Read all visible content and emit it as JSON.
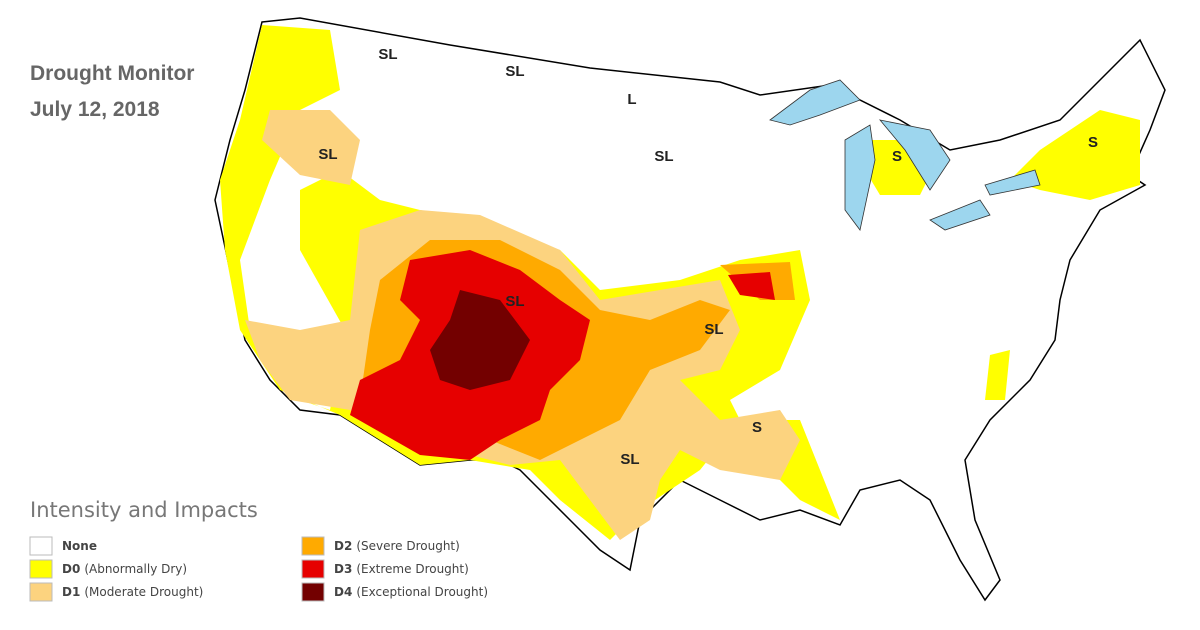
{
  "header": {
    "title": "Drought Monitor",
    "date": "July 12, 2018"
  },
  "map": {
    "labels": [
      "SL",
      "SL",
      "L",
      "SL",
      "SL",
      "S",
      "S",
      "SL",
      "SL",
      "S",
      "SL"
    ]
  },
  "legend": {
    "title": "Intensity and Impacts",
    "items": [
      {
        "code": "None",
        "color": "#ffffff"
      },
      {
        "code": "D0",
        "description": "(Abnormally Dry)",
        "color": "#ffff00"
      },
      {
        "code": "D1",
        "description": "(Moderate Drought)",
        "color": "#fcd37f"
      },
      {
        "code": "D2",
        "description": "(Severe Drought)",
        "color": "#ffaa00"
      },
      {
        "code": "D3",
        "description": "(Extreme Drought)",
        "color": "#e60000"
      },
      {
        "code": "D4",
        "description": "(Exceptional Drought)",
        "color": "#730000"
      }
    ]
  }
}
